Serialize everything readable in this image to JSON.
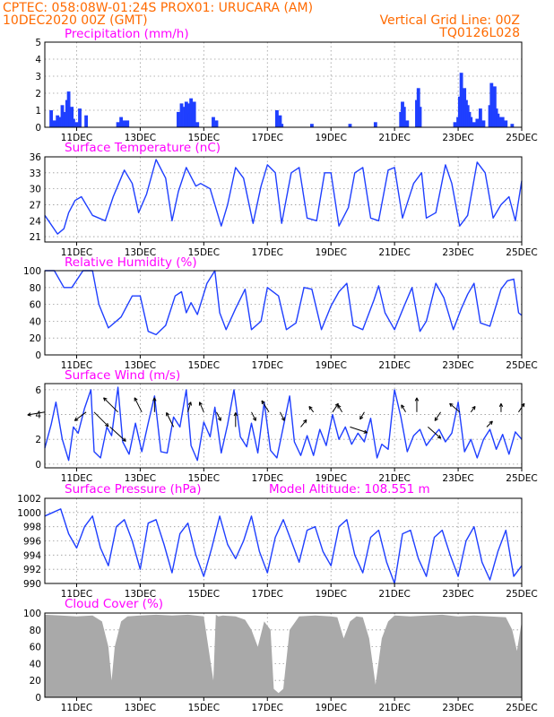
{
  "header": {
    "line1_left": "CPTEC:   058:08W-01:24S   PROX01: URUCARA (AM)",
    "line2_left": "10DEC2020 00Z (GMT)",
    "line2_right": "Vertical Grid Line: 00Z",
    "line3_right": "TQ0126L028"
  },
  "colors": {
    "header_text": "#ff6a00",
    "panel_title": "#ff00ff",
    "series_line": "#1f3fff",
    "cloud_fill": "#a9a9a9",
    "wind_arrow": "#000000",
    "grid": "#9a9a9a"
  },
  "x_axis": {
    "days": [
      "11DEC",
      "13DEC",
      "15DEC",
      "17DEC",
      "19DEC",
      "21DEC",
      "23DEC",
      "25DEC"
    ],
    "day_index": [
      1,
      3,
      5,
      7,
      9,
      11,
      13,
      15
    ]
  },
  "chart_data": [
    {
      "id": "precip",
      "type": "bar",
      "title": "Precipitation (mm/h)",
      "ylim": [
        0,
        5
      ],
      "yticks": [
        0,
        1,
        2,
        3,
        4,
        5
      ],
      "x_step_hours": 3,
      "x": [
        0.2,
        0.3,
        0.4,
        0.5,
        0.55,
        0.6,
        0.65,
        0.7,
        0.75,
        0.8,
        0.85,
        0.9,
        1.0,
        1.1,
        1.3,
        2.3,
        2.4,
        2.45,
        2.5,
        2.6,
        4.2,
        4.3,
        4.4,
        4.45,
        4.5,
        4.55,
        4.6,
        4.65,
        4.7,
        4.8,
        5.3,
        5.4,
        7.3,
        7.4,
        7.45,
        8.4,
        9.6,
        10.4,
        11.2,
        11.25,
        11.3,
        11.4,
        11.7,
        11.75,
        11.8,
        12.9,
        13.0,
        13.05,
        13.1,
        13.15,
        13.2,
        13.25,
        13.3,
        13.35,
        13.4,
        13.5,
        13.6,
        13.7,
        13.8,
        14.0,
        14.05,
        14.1,
        14.15,
        14.2,
        14.25,
        14.3,
        14.4,
        14.5,
        14.7
      ],
      "values": [
        1.0,
        0.4,
        0.7,
        0.6,
        1.3,
        0.9,
        0.5,
        1.6,
        2.1,
        1.0,
        1.2,
        0.5,
        0.3,
        1.1,
        0.7,
        0.3,
        0.6,
        0.3,
        0.4,
        0.4,
        0.9,
        1.4,
        1.2,
        1.5,
        1.4,
        0.8,
        1.7,
        0.8,
        1.5,
        0.3,
        0.6,
        0.4,
        1.0,
        0.7,
        0.2,
        0.2,
        0.2,
        0.3,
        0.9,
        1.5,
        1.2,
        0.4,
        1.6,
        2.3,
        1.2,
        0.3,
        0.6,
        1.8,
        3.2,
        2.0,
        2.3,
        1.6,
        1.3,
        0.9,
        0.6,
        0.3,
        0.5,
        1.1,
        0.4,
        1.3,
        2.6,
        1.5,
        2.4,
        1.1,
        0.8,
        0.6,
        0.6,
        0.4,
        0.2
      ],
      "xlabel": "",
      "ylabel": ""
    },
    {
      "id": "temp",
      "type": "line",
      "title": "Surface Temperature (nC)",
      "ylim": [
        20,
        36
      ],
      "yticks": [
        21,
        24,
        27,
        30,
        33,
        36
      ],
      "x_step_hours": 3,
      "x": [
        0.0,
        0.4,
        0.6,
        0.75,
        0.95,
        1.15,
        1.5,
        1.9,
        2.15,
        2.5,
        2.75,
        2.95,
        3.2,
        3.5,
        3.8,
        4.0,
        4.2,
        4.45,
        4.75,
        4.9,
        5.2,
        5.55,
        5.75,
        6.0,
        6.25,
        6.55,
        6.8,
        7.0,
        7.25,
        7.45,
        7.75,
        8.0,
        8.25,
        8.55,
        8.8,
        9.0,
        9.25,
        9.55,
        9.75,
        10.0,
        10.25,
        10.5,
        10.8,
        11.0,
        11.25,
        11.6,
        11.85,
        12.0,
        12.3,
        12.6,
        12.8,
        13.05,
        13.3,
        13.6,
        13.85,
        14.1,
        14.35,
        14.6,
        14.8,
        15.0
      ],
      "values": [
        25.0,
        21.5,
        22.5,
        25.5,
        27.8,
        28.5,
        25.0,
        24.0,
        28.5,
        33.5,
        31.0,
        25.5,
        29.0,
        35.5,
        32.0,
        24.0,
        29.5,
        34.0,
        30.5,
        31.0,
        30.0,
        23.0,
        27.0,
        34.0,
        32.0,
        23.5,
        30.5,
        34.5,
        33.0,
        23.5,
        33.0,
        34.0,
        24.5,
        24.0,
        33.0,
        33.0,
        23.0,
        26.5,
        33.0,
        34.0,
        24.5,
        24.0,
        33.5,
        34.0,
        24.5,
        31.0,
        33.0,
        24.5,
        25.5,
        34.5,
        31.0,
        23.0,
        25.0,
        35.0,
        33.0,
        24.5,
        27.0,
        28.5,
        24.0,
        31.5
      ],
      "xlabel": "",
      "ylabel": ""
    },
    {
      "id": "rh",
      "type": "line",
      "title": "Relative Humidity (%)",
      "ylim": [
        0,
        100
      ],
      "yticks": [
        0,
        20,
        40,
        60,
        80,
        100
      ],
      "x_step_hours": 3,
      "x": [
        0.0,
        0.3,
        0.6,
        0.85,
        1.2,
        1.5,
        1.7,
        2.0,
        2.4,
        2.75,
        3.0,
        3.25,
        3.5,
        3.8,
        4.1,
        4.3,
        4.45,
        4.6,
        4.8,
        5.1,
        5.35,
        5.5,
        5.7,
        6.0,
        6.3,
        6.5,
        6.8,
        7.0,
        7.35,
        7.6,
        7.9,
        8.15,
        8.4,
        8.7,
        9.0,
        9.25,
        9.5,
        9.7,
        10.0,
        10.35,
        10.5,
        10.7,
        11.0,
        11.3,
        11.55,
        11.8,
        12.0,
        12.3,
        12.55,
        12.85,
        13.1,
        13.3,
        13.5,
        13.7,
        14.0,
        14.35,
        14.55,
        14.75,
        14.9,
        15.0
      ],
      "values": [
        100,
        100,
        80,
        80,
        100,
        100,
        60,
        32,
        45,
        70,
        70,
        28,
        24,
        35,
        70,
        75,
        50,
        62,
        48,
        85,
        100,
        50,
        30,
        55,
        78,
        30,
        40,
        80,
        70,
        30,
        38,
        80,
        78,
        30,
        58,
        75,
        85,
        35,
        30,
        65,
        82,
        50,
        30,
        58,
        80,
        28,
        40,
        85,
        68,
        30,
        55,
        72,
        85,
        38,
        34,
        78,
        88,
        90,
        50,
        47
      ],
      "xlabel": "",
      "ylabel": ""
    },
    {
      "id": "wind",
      "type": "line",
      "title": "Surface Wind (m/s)",
      "ylim": [
        -0.3,
        6.5
      ],
      "yticks": [
        0,
        2,
        4,
        6
      ],
      "x_step_hours": 3,
      "x": [
        0.0,
        0.2,
        0.35,
        0.55,
        0.75,
        0.9,
        1.05,
        1.25,
        1.45,
        1.55,
        1.75,
        1.95,
        2.1,
        2.3,
        2.45,
        2.65,
        2.85,
        3.05,
        3.25,
        3.45,
        3.65,
        3.85,
        4.05,
        4.25,
        4.45,
        4.6,
        4.8,
        5.0,
        5.2,
        5.35,
        5.55,
        5.75,
        5.95,
        6.15,
        6.35,
        6.5,
        6.7,
        6.9,
        7.1,
        7.3,
        7.5,
        7.7,
        7.85,
        8.05,
        8.25,
        8.45,
        8.65,
        8.85,
        9.05,
        9.25,
        9.45,
        9.65,
        9.85,
        10.05,
        10.25,
        10.45,
        10.6,
        10.8,
        11.0,
        11.2,
        11.4,
        11.6,
        11.8,
        12.0,
        12.2,
        12.4,
        12.6,
        12.8,
        13.0,
        13.2,
        13.4,
        13.6,
        13.8,
        14.0,
        14.2,
        14.4,
        14.6,
        14.8,
        15.0
      ],
      "values": [
        1.3,
        3.2,
        5.0,
        2.0,
        0.3,
        3.0,
        2.5,
        4.5,
        6.0,
        1.0,
        0.5,
        3.0,
        2.3,
        6.2,
        1.8,
        0.8,
        3.3,
        1.0,
        3.3,
        5.5,
        1.0,
        0.9,
        3.8,
        3.0,
        6.0,
        1.5,
        0.3,
        3.4,
        2.2,
        4.6,
        0.9,
        3.2,
        6.0,
        2.2,
        1.4,
        3.3,
        0.9,
        5.0,
        1.1,
        0.5,
        3.0,
        5.5,
        1.8,
        0.7,
        2.3,
        0.7,
        2.8,
        1.5,
        4.0,
        2.0,
        3.0,
        1.6,
        2.5,
        1.8,
        3.7,
        0.5,
        1.6,
        1.2,
        6.0,
        3.8,
        1.0,
        2.3,
        2.8,
        1.5,
        2.2,
        2.8,
        1.8,
        2.5,
        5.0,
        1.0,
        2.0,
        0.5,
        2.0,
        2.8,
        1.2,
        2.4,
        0.8,
        2.6,
        2.0
      ],
      "arrows": {
        "x": [
          0.0,
          1.3,
          1.55,
          2.05,
          2.3,
          3.05,
          3.45,
          4.05,
          4.5,
          5.0,
          5.4,
          6.0,
          6.5,
          7.05,
          7.4,
          8.05,
          8.45,
          9.05,
          9.35,
          9.6,
          10.05,
          11.35,
          11.7,
          12.05,
          12.45,
          13.05,
          13.4,
          13.9,
          14.35,
          14.9
        ],
        "u": [
          -1.2,
          -0.8,
          1.0,
          1.1,
          -1.0,
          -0.5,
          0.0,
          -0.5,
          0.2,
          -0.3,
          0.3,
          0.0,
          0.3,
          -0.5,
          0.3,
          0.4,
          -0.3,
          0.4,
          -0.3,
          1.2,
          -0.3,
          -0.3,
          0.0,
          0.9,
          -0.4,
          -0.7,
          0.3,
          0.4,
          0.0,
          0.4
        ],
        "v": [
          -0.2,
          -0.6,
          -1.0,
          -1.0,
          1.0,
          1.0,
          1.0,
          1.0,
          0.7,
          0.7,
          -0.6,
          1.0,
          -0.6,
          0.8,
          -0.6,
          0.5,
          0.4,
          0.6,
          0.5,
          -0.4,
          -0.5,
          0.5,
          1.0,
          -0.8,
          -0.6,
          0.6,
          0.4,
          0.4,
          0.6,
          0.6
        ]
      },
      "xlabel": "",
      "ylabel": ""
    },
    {
      "id": "pressure",
      "type": "line",
      "title": "Surface Pressure (hPa)",
      "subtitle": "Model Altitude: 108.551 m",
      "ylim": [
        990,
        1002
      ],
      "yticks": [
        990,
        992,
        994,
        996,
        998,
        1000,
        1002
      ],
      "x_step_hours": 3,
      "x": [
        0.0,
        0.25,
        0.5,
        0.75,
        1.0,
        1.25,
        1.5,
        1.75,
        2.0,
        2.25,
        2.5,
        2.75,
        3.0,
        3.25,
        3.5,
        3.75,
        4.0,
        4.25,
        4.5,
        4.75,
        5.0,
        5.25,
        5.5,
        5.75,
        6.0,
        6.25,
        6.5,
        6.75,
        7.0,
        7.25,
        7.5,
        7.75,
        8.0,
        8.25,
        8.5,
        8.75,
        9.0,
        9.25,
        9.5,
        9.75,
        10.0,
        10.25,
        10.5,
        10.75,
        11.0,
        11.25,
        11.5,
        11.75,
        12.0,
        12.25,
        12.5,
        12.75,
        13.0,
        13.25,
        13.5,
        13.75,
        14.0,
        14.25,
        14.5,
        14.75,
        15.0
      ],
      "values": [
        999.5,
        1000.0,
        1000.5,
        997.0,
        995.0,
        998.0,
        999.5,
        995.0,
        992.5,
        998.0,
        999.0,
        996.0,
        992.0,
        998.5,
        999.0,
        995.5,
        991.5,
        997.0,
        998.5,
        994.0,
        991.0,
        995.0,
        999.5,
        995.5,
        993.5,
        996.0,
        999.5,
        994.5,
        991.5,
        996.5,
        999.0,
        996.0,
        993.0,
        997.5,
        998.0,
        994.5,
        992.5,
        998.0,
        999.0,
        994.0,
        991.5,
        996.5,
        997.5,
        993.0,
        990.0,
        997.0,
        997.5,
        993.5,
        991.0,
        996.5,
        997.5,
        994.0,
        991.0,
        996.0,
        998.0,
        993.0,
        990.5,
        994.5,
        997.5,
        991.0,
        992.5
      ],
      "xlabel": "",
      "ylabel": ""
    },
    {
      "id": "cloud",
      "type": "area",
      "title": "Cloud Cover (%)",
      "ylim": [
        0,
        100
      ],
      "yticks": [
        0,
        20,
        40,
        60,
        80,
        100
      ],
      "x_step_hours": 3,
      "x": [
        0.0,
        0.5,
        1.0,
        1.5,
        1.8,
        2.0,
        2.1,
        2.2,
        2.4,
        2.6,
        3.0,
        3.5,
        4.0,
        4.5,
        5.0,
        5.3,
        5.38,
        5.46,
        5.6,
        6.0,
        6.3,
        6.5,
        6.7,
        6.9,
        7.1,
        7.2,
        7.35,
        7.5,
        7.7,
        8.0,
        8.5,
        9.0,
        9.2,
        9.4,
        9.6,
        9.8,
        10.0,
        10.2,
        10.4,
        10.6,
        10.8,
        11.0,
        11.5,
        12.0,
        12.5,
        13.0,
        13.5,
        14.0,
        14.5,
        14.7,
        14.85,
        15.0
      ],
      "values": [
        98,
        97,
        96,
        97,
        90,
        60,
        20,
        60,
        90,
        96,
        97,
        98,
        97,
        98,
        96,
        20,
        98,
        96,
        97,
        96,
        92,
        80,
        60,
        90,
        80,
        10,
        5,
        10,
        80,
        96,
        97,
        96,
        95,
        70,
        90,
        96,
        95,
        70,
        15,
        70,
        90,
        97,
        96,
        97,
        98,
        96,
        97,
        96,
        95,
        80,
        55,
        90
      ],
      "xlabel": "",
      "ylabel": ""
    }
  ]
}
